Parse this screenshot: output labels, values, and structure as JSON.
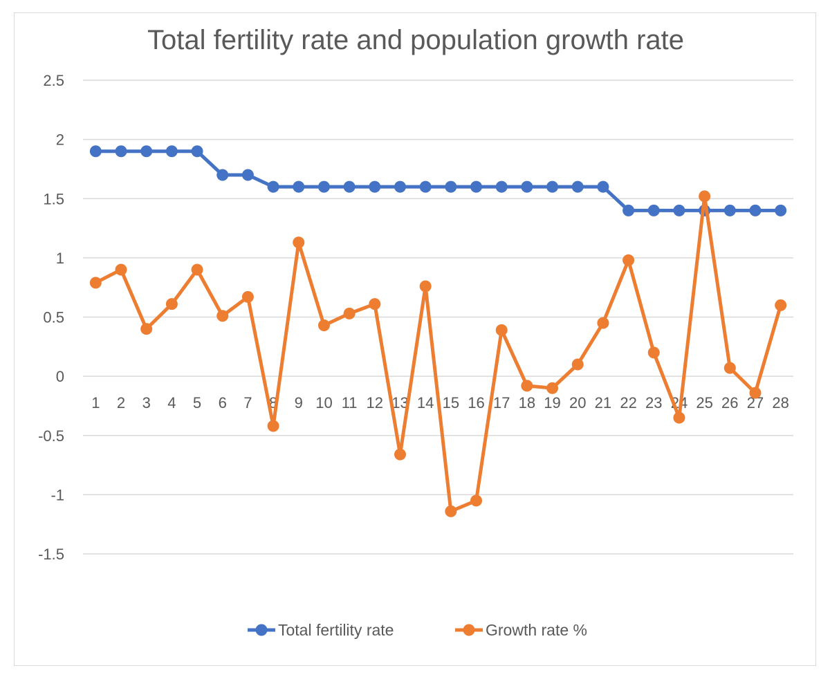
{
  "chart_data": {
    "type": "line",
    "title": "Total fertility rate and population growth rate",
    "categories": [
      "1",
      "2",
      "3",
      "4",
      "5",
      "6",
      "7",
      "8",
      "9",
      "10",
      "11",
      "12",
      "13",
      "14",
      "15",
      "16",
      "17",
      "18",
      "19",
      "20",
      "21",
      "22",
      "23",
      "24",
      "25",
      "26",
      "27",
      "28"
    ],
    "ylim": [
      -1.5,
      2.5
    ],
    "yticks": [
      2.5,
      2,
      1.5,
      1,
      0.5,
      0,
      -0.5,
      -1,
      -1.5
    ],
    "ytick_labels": [
      "2.5",
      "2",
      "1.5",
      "1",
      "0.5",
      "0",
      "-0.5",
      "-1",
      "-1.5"
    ],
    "grid": true,
    "legend_position": "bottom",
    "series": [
      {
        "name": "Total fertility rate",
        "color": "#4472c4",
        "values": [
          1.9,
          1.9,
          1.9,
          1.9,
          1.9,
          1.7,
          1.7,
          1.6,
          1.6,
          1.6,
          1.6,
          1.6,
          1.6,
          1.6,
          1.6,
          1.6,
          1.6,
          1.6,
          1.6,
          1.6,
          1.6,
          1.4,
          1.4,
          1.4,
          1.4,
          1.4,
          1.4,
          1.4
        ]
      },
      {
        "name": "Growth rate %",
        "color": "#ed7d31",
        "values": [
          0.79,
          0.9,
          0.4,
          0.61,
          0.9,
          0.51,
          0.67,
          -0.42,
          1.13,
          0.43,
          0.53,
          0.61,
          -0.66,
          0.76,
          -1.14,
          -1.05,
          0.39,
          -0.08,
          -0.1,
          0.1,
          0.45,
          0.98,
          0.2,
          -0.35,
          1.52,
          0.07,
          -0.14,
          0.6
        ]
      }
    ]
  }
}
